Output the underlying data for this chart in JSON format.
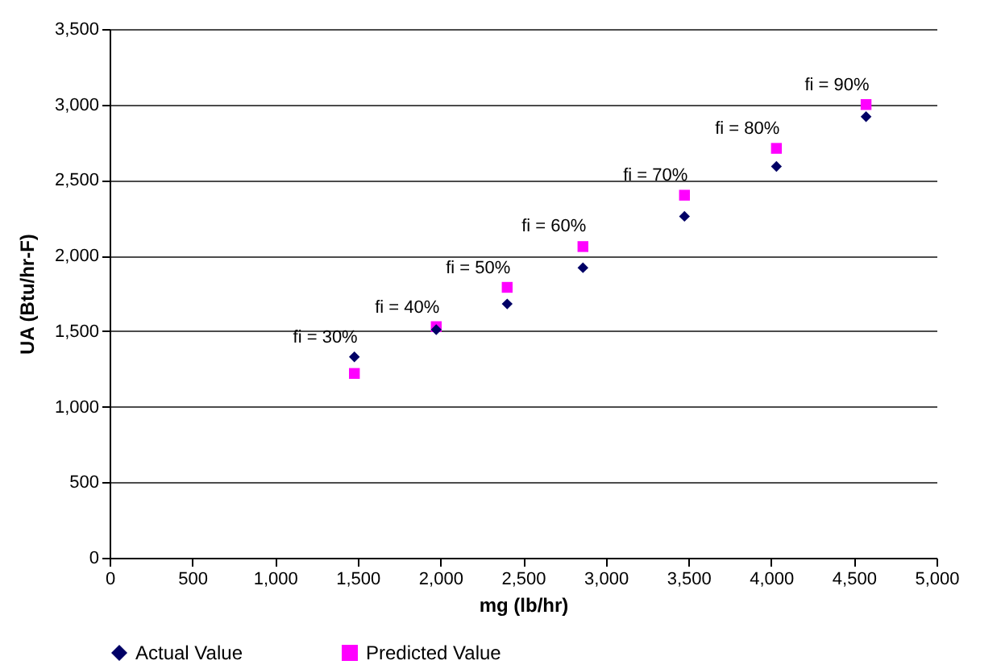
{
  "chart_data": {
    "type": "scatter",
    "xlabel": "mg (lb/hr)",
    "ylabel": "UA (Btu/hr-F)",
    "x": [
      1480,
      1975,
      2404,
      2862,
      3476,
      4032,
      4574
    ],
    "series": [
      {
        "name": "Actual Value",
        "color": "#000066",
        "marker": "diamond",
        "values": [
          1330,
          1510,
          1680,
          1920,
          2260,
          2590,
          2920
        ]
      },
      {
        "name": "Predicted Value",
        "color": "#ff00ff",
        "marker": "square",
        "values": [
          1220,
          1530,
          1790,
          2060,
          2400,
          2710,
          3000
        ]
      }
    ],
    "annotations": [
      {
        "text": "fi = 30%",
        "x": 1480,
        "y": 1327
      },
      {
        "text": "fi = 40%",
        "x": 1975,
        "y": 1526
      },
      {
        "text": "fi = 50%",
        "x": 2404,
        "y": 1790
      },
      {
        "text": "fi = 60%",
        "x": 2862,
        "y": 2063
      },
      {
        "text": "fi = 70%",
        "x": 3476,
        "y": 2401
      },
      {
        "text": "fi = 80%",
        "x": 4032,
        "y": 2711
      },
      {
        "text": "fi = 90%",
        "x": 4574,
        "y": 2996
      }
    ],
    "xlim": [
      0,
      5000
    ],
    "xticks": [
      0,
      500,
      {
        "value": 1000,
        "label": "1,000"
      },
      {
        "value": 1500,
        "label": "1,500"
      },
      {
        "value": 2000,
        "label": "2,000"
      },
      {
        "value": 2500,
        "label": "2,500"
      },
      {
        "value": 3000,
        "label": "3,000"
      },
      {
        "value": 3500,
        "label": "3,500"
      },
      {
        "value": 4000,
        "label": "4,000"
      },
      {
        "value": 4500,
        "label": "4,500"
      },
      {
        "value": 5000,
        "label": "5,000"
      }
    ],
    "ylim": [
      0,
      3500
    ],
    "yticks": [
      0,
      500,
      {
        "value": 1000,
        "label": "1,000"
      },
      {
        "value": 1500,
        "label": "1,500"
      },
      {
        "value": 2000,
        "label": "2,000"
      },
      {
        "value": 2500,
        "label": "2,500"
      },
      {
        "value": 3000,
        "label": "3,000"
      },
      {
        "value": 3500,
        "label": "3,500"
      }
    ],
    "grid": "y",
    "legend": "bottom"
  }
}
